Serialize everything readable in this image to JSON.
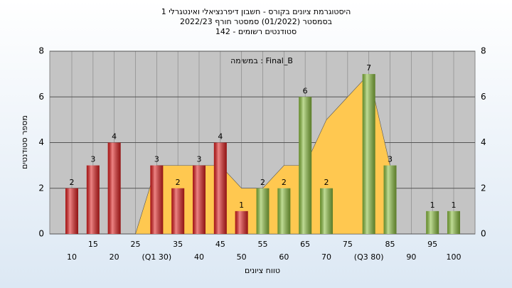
{
  "chart_data": {
    "type": "bar",
    "title": [
      "היסטוגרמת ציונים בקורס - חשבון דיפרנציאלי ואינטגרלי 1",
      "בסמסטר  (01/2022)  סמסטר חורף  2022/23",
      "סטודנטים רשומים - 142"
    ],
    "annotation": "במשימה : Final_B",
    "x_label": "טווח ציונים",
    "y_label": "מספר סטודנטים",
    "categories": [
      "10",
      "15",
      "20",
      "25",
      "(Q1 30)",
      "35",
      "40",
      "45",
      "50",
      "55",
      "60",
      "65",
      "70",
      "75",
      "(Q3 80)",
      "85",
      "90",
      "95",
      "100"
    ],
    "values": [
      2,
      3,
      4,
      0,
      3,
      2,
      3,
      4,
      1,
      2,
      2,
      6,
      2,
      0,
      7,
      3,
      0,
      1,
      1
    ],
    "colors": [
      "#e02020",
      "#e02020",
      "#e02020",
      "#e02020",
      "#e02020",
      "#e02020",
      "#e02020",
      "#e02020",
      "#e02020",
      "#8cc040",
      "#8cc040",
      "#8cc040",
      "#8cc040",
      "#8cc040",
      "#8cc040",
      "#8cc040",
      "#8cc040",
      "#8cc040",
      "#8cc040"
    ],
    "area": {
      "color": "#ffc850",
      "values": [
        null,
        null,
        null,
        0,
        3,
        3,
        3,
        3,
        2,
        2,
        3,
        3,
        5,
        6,
        7,
        3,
        null,
        null,
        null
      ]
    },
    "ylim": [
      0,
      8
    ],
    "yticks": [
      0,
      2,
      4,
      6,
      8
    ],
    "grid": true
  }
}
